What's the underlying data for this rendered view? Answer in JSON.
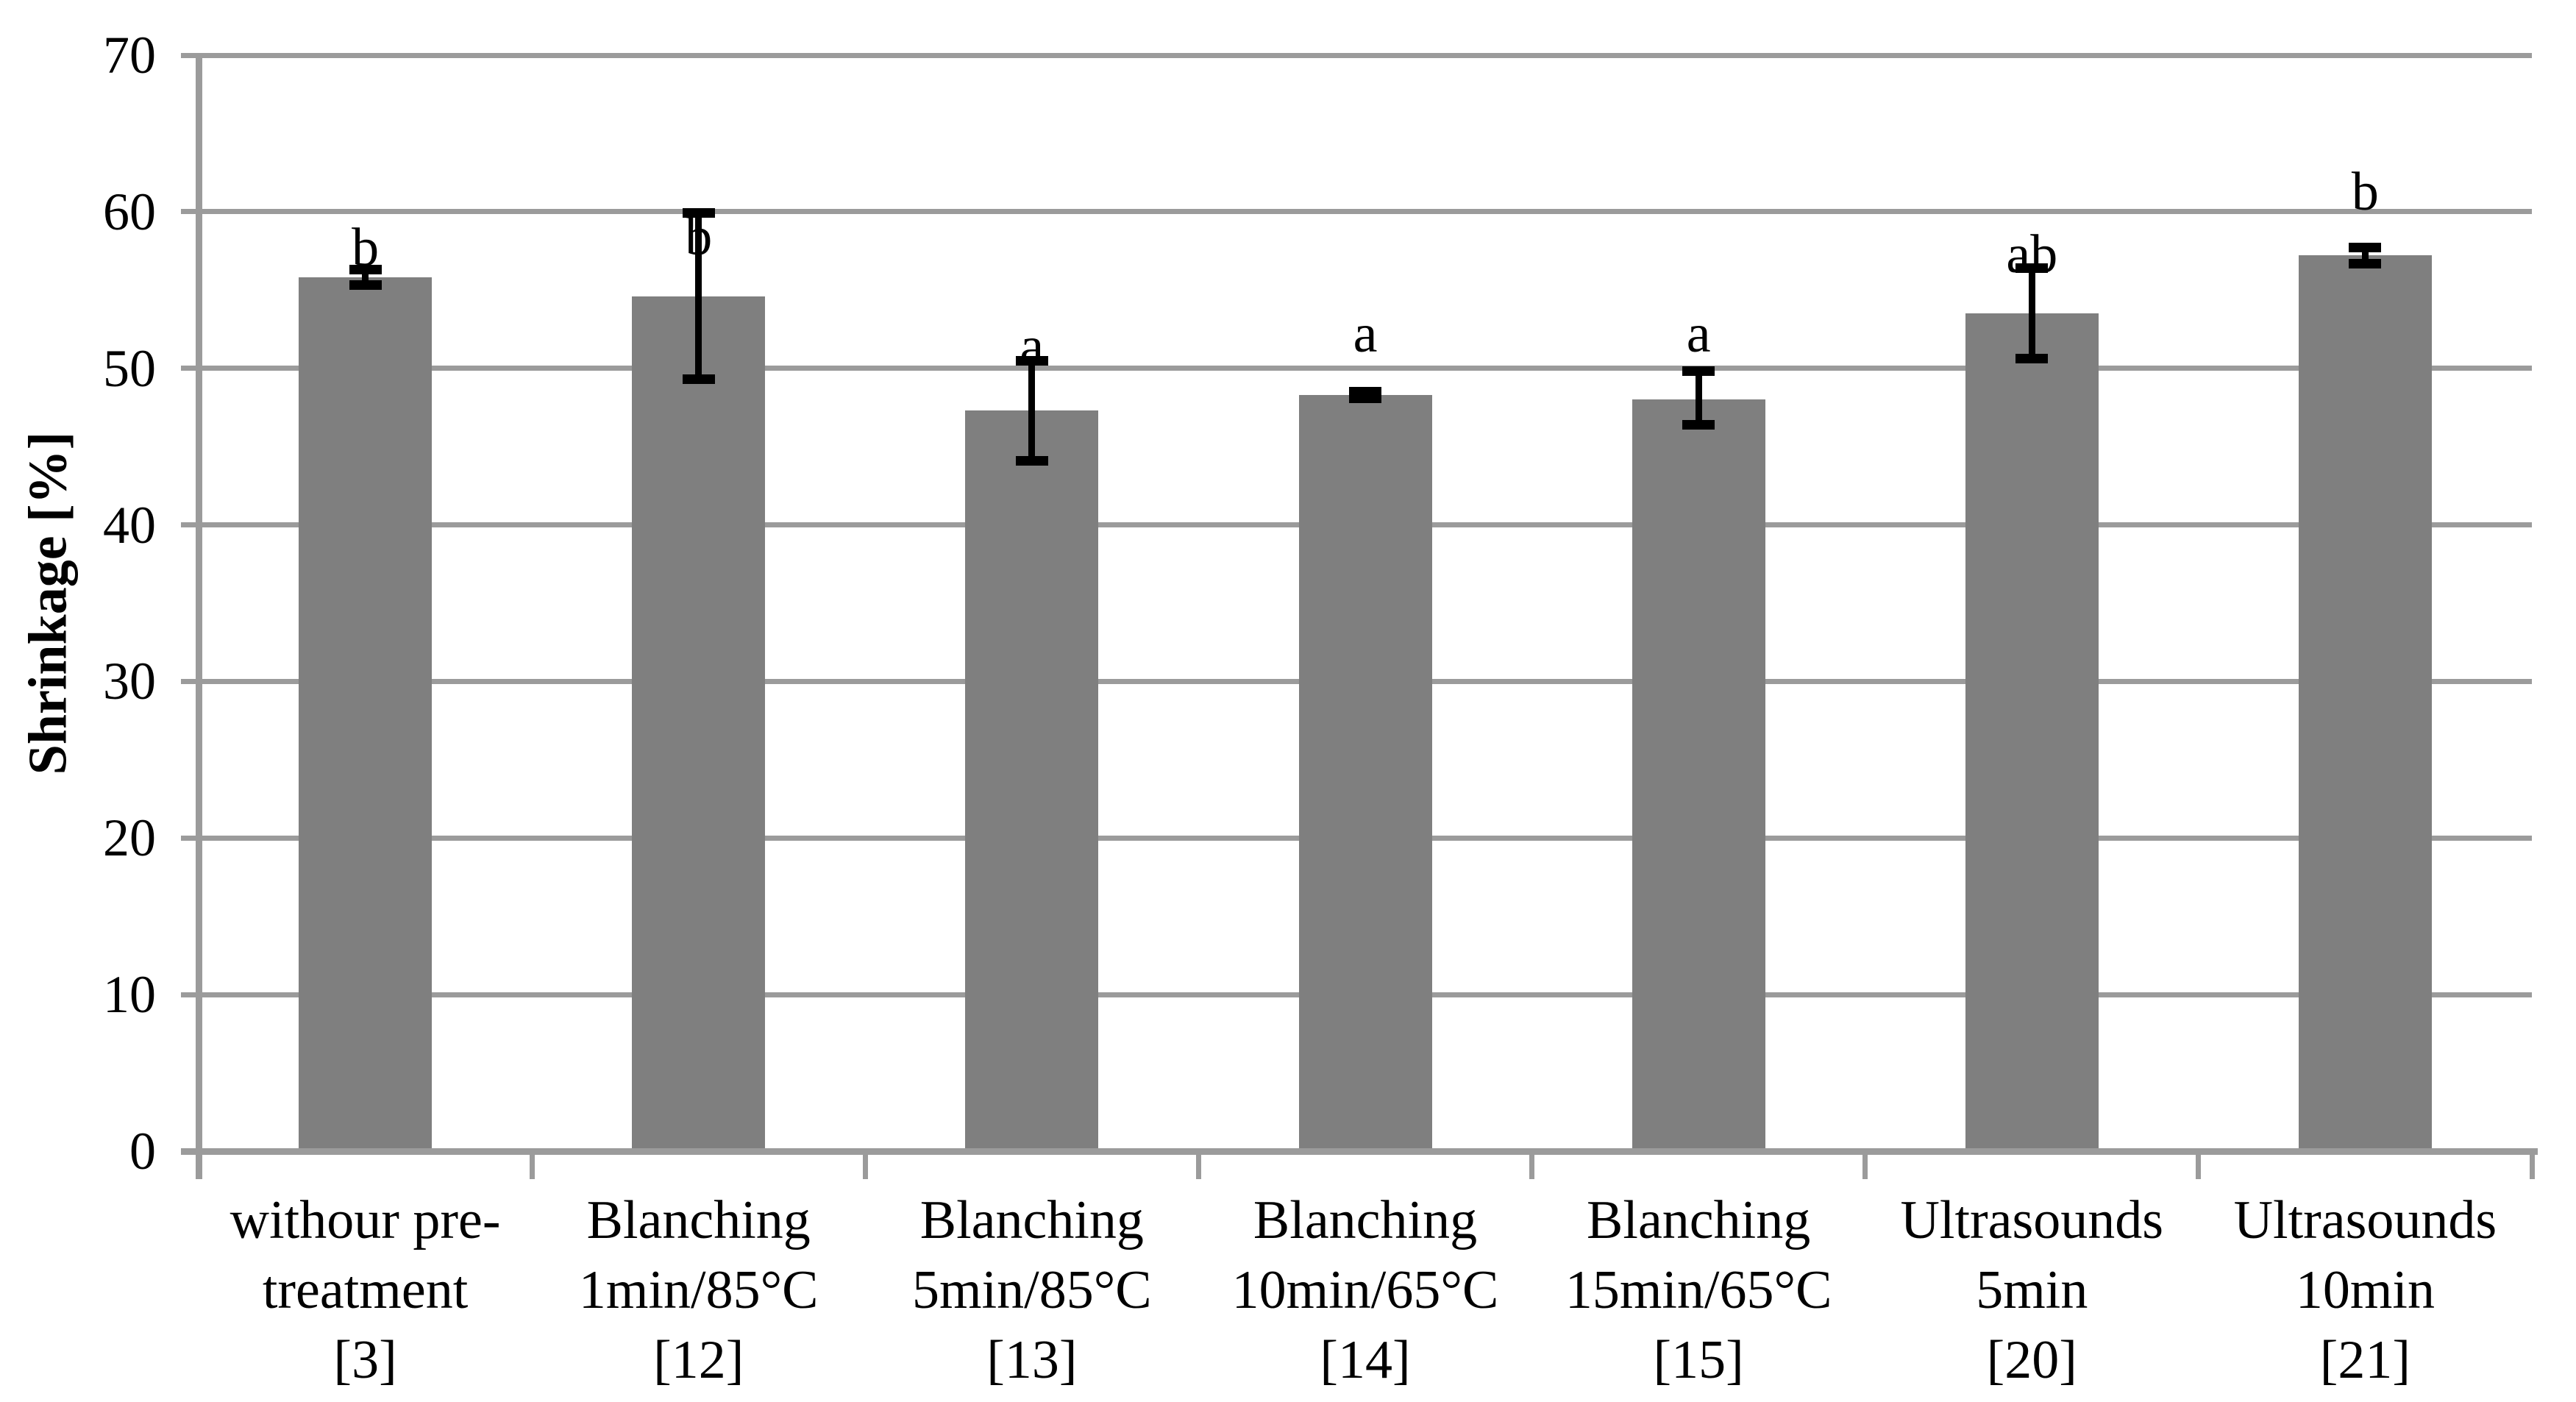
{
  "chart_data": {
    "type": "bar",
    "title": "",
    "xlabel": "",
    "ylabel": "Shrinkage [%]",
    "ylim": [
      0,
      70
    ],
    "ytick_step": 10,
    "yticks": [
      0,
      10,
      20,
      30,
      40,
      50,
      60,
      70
    ],
    "grid": "horizontal-major",
    "legend": "none",
    "bar_color": "#7f7f7f",
    "grid_color": "#9b9b9b",
    "error_bar_color": "#000000",
    "categories": [
      "withour pre-\ntreatment\n[3]",
      "Blanching\n1min/85°C\n[12]",
      "Blanching\n5min/85°C\n[13]",
      "Blanching\n10min/65°C\n[14]",
      "Blanching\n15min/65°C\n[15]",
      "Ultrasounds\n5min\n[20]",
      "Ultrasounds\n10min\n[21]"
    ],
    "values": [
      55.8,
      54.6,
      47.3,
      48.3,
      48.0,
      53.5,
      57.2
    ],
    "error_bars": {
      "upper": [
        56.3,
        59.9,
        50.5,
        48.5,
        49.8,
        56.4,
        57.7
      ],
      "lower": [
        55.3,
        49.3,
        44.1,
        48.1,
        46.4,
        50.6,
        56.7
      ]
    },
    "sig_letters": [
      "b",
      "b",
      "a",
      "a",
      "a",
      "ab",
      "b"
    ],
    "sig_letter_bottom_v": [
      56.5,
      57.2,
      50.2,
      51.0,
      51.0,
      56.1,
      60.1
    ]
  }
}
